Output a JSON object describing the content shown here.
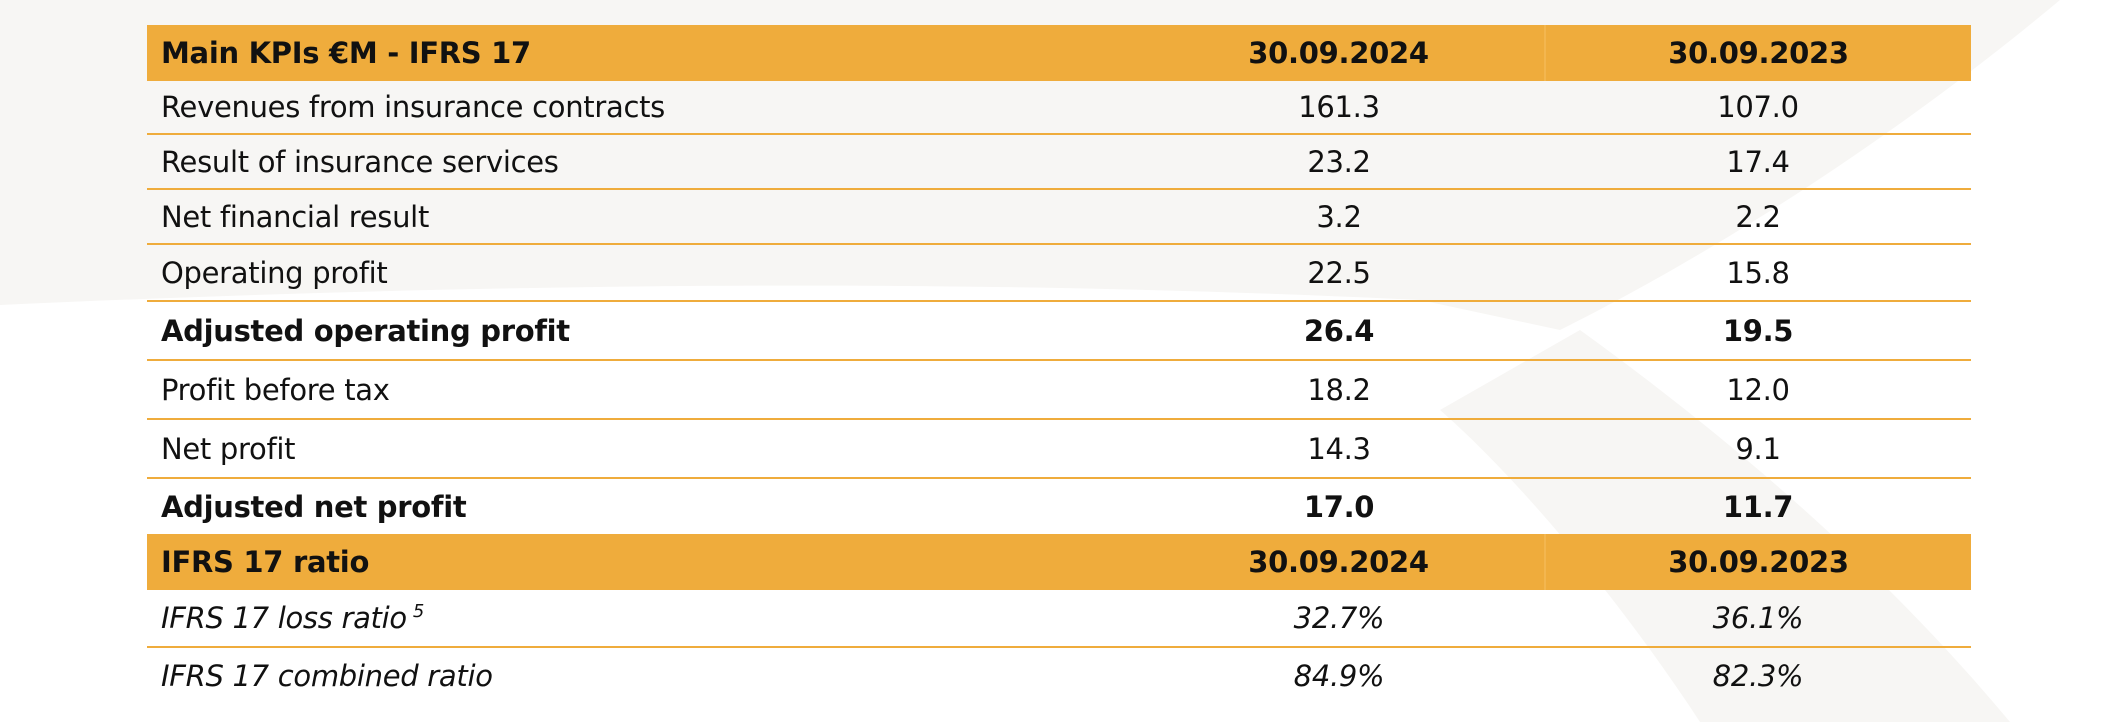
{
  "kpi_table": {
    "header": {
      "label": "Main KPIs €M - IFRS 17",
      "col1": "30.09.2024",
      "col2": "30.09.2023"
    },
    "rows": [
      {
        "label": "Revenues from insurance contracts",
        "v1": "161.3",
        "v2": "107.0"
      },
      {
        "label": "Result of insurance services",
        "v1": "23.2",
        "v2": "17.4"
      },
      {
        "label": "Net financial result",
        "v1": "3.2",
        "v2": "2.2"
      },
      {
        "label": "Operating profit",
        "v1": "22.5",
        "v2": "15.8"
      },
      {
        "label": "Adjusted operating profit",
        "v1": "26.4",
        "v2": "19.5"
      },
      {
        "label": "Profit before tax",
        "v1": "18.2",
        "v2": "12.0"
      },
      {
        "label": "Net profit",
        "v1": "14.3",
        "v2": "9.1"
      },
      {
        "label": "Adjusted net profit",
        "v1": "17.0",
        "v2": "11.7"
      }
    ]
  },
  "ratio_table": {
    "header": {
      "label": "IFRS 17 ratio",
      "col1": "30.09.2024",
      "col2": "30.09.2023"
    },
    "rows": [
      {
        "label": "IFRS 17 loss ratio",
        "footnote": "5",
        "v1": "32.7%",
        "v2": "36.1%"
      },
      {
        "label": "IFRS 17 combined ratio",
        "v1": "84.9%",
        "v2": "82.3%"
      }
    ]
  },
  "colors": {
    "header_background": "#efac3c",
    "row_divider": "#efac3c",
    "background_swoosh": "#f7f6f4"
  }
}
